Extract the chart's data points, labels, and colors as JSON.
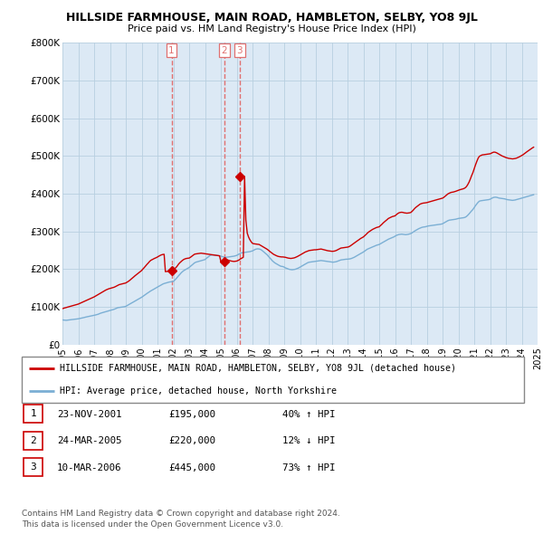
{
  "title": "HILLSIDE FARMHOUSE, MAIN ROAD, HAMBLETON, SELBY, YO8 9JL",
  "subtitle": "Price paid vs. HM Land Registry's House Price Index (HPI)",
  "legend_line1": "HILLSIDE FARMHOUSE, MAIN ROAD, HAMBLETON, SELBY, YO8 9JL (detached house)",
  "legend_line2": "HPI: Average price, detached house, North Yorkshire",
  "footer1": "Contains HM Land Registry data © Crown copyright and database right 2024.",
  "footer2": "This data is licensed under the Open Government Licence v3.0.",
  "transactions": [
    {
      "num": "1",
      "date": "23-NOV-2001",
      "price": "£195,000",
      "hpi": "40% ↑ HPI",
      "year": 2001.89
    },
    {
      "num": "2",
      "date": "24-MAR-2005",
      "price": "£220,000",
      "hpi": "12% ↓ HPI",
      "year": 2005.23
    },
    {
      "num": "3",
      "date": "10-MAR-2006",
      "price": "£445,000",
      "hpi": "73% ↑ HPI",
      "year": 2006.19
    }
  ],
  "hpi_color": "#7bafd4",
  "price_color": "#cc0000",
  "vline_color": "#e07070",
  "background_chart": "#dce9f5",
  "grid_color": "#b8cfe0",
  "ylim": [
    0,
    800000
  ],
  "yticks": [
    0,
    100000,
    200000,
    300000,
    400000,
    500000,
    600000,
    700000,
    800000
  ],
  "ytick_labels": [
    "£0",
    "£100K",
    "£200K",
    "£300K",
    "£400K",
    "£500K",
    "£600K",
    "£700K",
    "£800K"
  ],
  "sale_prices": [
    195000,
    220000,
    445000
  ],
  "sale_years": [
    2001.89,
    2005.23,
    2006.19
  ],
  "vline_years": [
    2001.89,
    2005.23,
    2006.19
  ],
  "hpi_x": [
    1995.0,
    1995.08,
    1995.17,
    1995.25,
    1995.33,
    1995.42,
    1995.5,
    1995.58,
    1995.67,
    1995.75,
    1995.83,
    1995.92,
    1996.0,
    1996.08,
    1996.17,
    1996.25,
    1996.33,
    1996.42,
    1996.5,
    1996.58,
    1996.67,
    1996.75,
    1996.83,
    1996.92,
    1997.0,
    1997.08,
    1997.17,
    1997.25,
    1997.33,
    1997.42,
    1997.5,
    1997.58,
    1997.67,
    1997.75,
    1997.83,
    1997.92,
    1998.0,
    1998.08,
    1998.17,
    1998.25,
    1998.33,
    1998.42,
    1998.5,
    1998.58,
    1998.67,
    1998.75,
    1998.83,
    1998.92,
    1999.0,
    1999.08,
    1999.17,
    1999.25,
    1999.33,
    1999.42,
    1999.5,
    1999.58,
    1999.67,
    1999.75,
    1999.83,
    1999.92,
    2000.0,
    2000.08,
    2000.17,
    2000.25,
    2000.33,
    2000.42,
    2000.5,
    2000.58,
    2000.67,
    2000.75,
    2000.83,
    2000.92,
    2001.0,
    2001.08,
    2001.17,
    2001.25,
    2001.33,
    2001.42,
    2001.5,
    2001.58,
    2001.67,
    2001.75,
    2001.83,
    2001.92,
    2002.0,
    2002.08,
    2002.17,
    2002.25,
    2002.33,
    2002.42,
    2002.5,
    2002.58,
    2002.67,
    2002.75,
    2002.83,
    2002.92,
    2003.0,
    2003.08,
    2003.17,
    2003.25,
    2003.33,
    2003.42,
    2003.5,
    2003.58,
    2003.67,
    2003.75,
    2003.83,
    2003.92,
    2004.0,
    2004.08,
    2004.17,
    2004.25,
    2004.33,
    2004.42,
    2004.5,
    2004.58,
    2004.67,
    2004.75,
    2004.83,
    2004.92,
    2005.0,
    2005.08,
    2005.17,
    2005.25,
    2005.33,
    2005.42,
    2005.5,
    2005.58,
    2005.67,
    2005.75,
    2005.83,
    2005.92,
    2006.0,
    2006.08,
    2006.17,
    2006.25,
    2006.33,
    2006.42,
    2006.5,
    2006.58,
    2006.67,
    2006.75,
    2006.83,
    2006.92,
    2007.0,
    2007.08,
    2007.17,
    2007.25,
    2007.33,
    2007.42,
    2007.5,
    2007.58,
    2007.67,
    2007.75,
    2007.83,
    2007.92,
    2008.0,
    2008.08,
    2008.17,
    2008.25,
    2008.33,
    2008.42,
    2008.5,
    2008.58,
    2008.67,
    2008.75,
    2008.83,
    2008.92,
    2009.0,
    2009.08,
    2009.17,
    2009.25,
    2009.33,
    2009.42,
    2009.5,
    2009.58,
    2009.67,
    2009.75,
    2009.83,
    2009.92,
    2010.0,
    2010.08,
    2010.17,
    2010.25,
    2010.33,
    2010.42,
    2010.5,
    2010.58,
    2010.67,
    2010.75,
    2010.83,
    2010.92,
    2011.0,
    2011.08,
    2011.17,
    2011.25,
    2011.33,
    2011.42,
    2011.5,
    2011.58,
    2011.67,
    2011.75,
    2011.83,
    2011.92,
    2012.0,
    2012.08,
    2012.17,
    2012.25,
    2012.33,
    2012.42,
    2012.5,
    2012.58,
    2012.67,
    2012.75,
    2012.83,
    2012.92,
    2013.0,
    2013.08,
    2013.17,
    2013.25,
    2013.33,
    2013.42,
    2013.5,
    2013.58,
    2013.67,
    2013.75,
    2013.83,
    2013.92,
    2014.0,
    2014.08,
    2014.17,
    2014.25,
    2014.33,
    2014.42,
    2014.5,
    2014.58,
    2014.67,
    2014.75,
    2014.83,
    2014.92,
    2015.0,
    2015.08,
    2015.17,
    2015.25,
    2015.33,
    2015.42,
    2015.5,
    2015.58,
    2015.67,
    2015.75,
    2015.83,
    2015.92,
    2016.0,
    2016.08,
    2016.17,
    2016.25,
    2016.33,
    2016.42,
    2016.5,
    2016.58,
    2016.67,
    2016.75,
    2016.83,
    2016.92,
    2017.0,
    2017.08,
    2017.17,
    2017.25,
    2017.33,
    2017.42,
    2017.5,
    2017.58,
    2017.67,
    2017.75,
    2017.83,
    2017.92,
    2018.0,
    2018.08,
    2018.17,
    2018.25,
    2018.33,
    2018.42,
    2018.5,
    2018.58,
    2018.67,
    2018.75,
    2018.83,
    2018.92,
    2019.0,
    2019.08,
    2019.17,
    2019.25,
    2019.33,
    2019.42,
    2019.5,
    2019.58,
    2019.67,
    2019.75,
    2019.83,
    2019.92,
    2020.0,
    2020.08,
    2020.17,
    2020.25,
    2020.33,
    2020.42,
    2020.5,
    2020.58,
    2020.67,
    2020.75,
    2020.83,
    2020.92,
    2021.0,
    2021.08,
    2021.17,
    2021.25,
    2021.33,
    2021.42,
    2021.5,
    2021.58,
    2021.67,
    2021.75,
    2021.83,
    2021.92,
    2022.0,
    2022.08,
    2022.17,
    2022.25,
    2022.33,
    2022.42,
    2022.5,
    2022.58,
    2022.67,
    2022.75,
    2022.83,
    2022.92,
    2023.0,
    2023.08,
    2023.17,
    2023.25,
    2023.33,
    2023.42,
    2023.5,
    2023.58,
    2023.67,
    2023.75,
    2023.83,
    2023.92,
    2024.0,
    2024.08,
    2024.17,
    2024.25,
    2024.33,
    2024.42,
    2024.5,
    2024.58,
    2024.67,
    2024.75
  ],
  "hpi_y": [
    65000,
    64500,
    64200,
    64000,
    64500,
    65000,
    65500,
    65800,
    66200,
    66500,
    67000,
    67500,
    68000,
    68800,
    69500,
    70200,
    71000,
    72000,
    72800,
    73500,
    74200,
    75000,
    75800,
    76500,
    77000,
    78000,
    79000,
    80000,
    81500,
    83000,
    84000,
    85000,
    86000,
    87000,
    88000,
    89000,
    90000,
    91000,
    92000,
    93000,
    94500,
    96000,
    97500,
    98000,
    98500,
    99000,
    99500,
    100000,
    101000,
    103000,
    105000,
    107000,
    109000,
    111000,
    113000,
    115000,
    117000,
    119000,
    121000,
    123000,
    125000,
    127500,
    130000,
    132500,
    135000,
    137500,
    140000,
    142000,
    144000,
    146000,
    148000,
    150000,
    152000,
    154000,
    156000,
    158000,
    160000,
    161500,
    162500,
    163500,
    164500,
    165500,
    166000,
    166500,
    167000,
    170000,
    174000,
    178000,
    182000,
    186000,
    190000,
    193000,
    196000,
    198000,
    200000,
    202000,
    204000,
    207000,
    210000,
    213000,
    216000,
    218000,
    219000,
    220000,
    221000,
    222000,
    223000,
    224000,
    225000,
    228000,
    231000,
    234000,
    236000,
    237000,
    237500,
    237000,
    236500,
    236000,
    235500,
    235000,
    234000,
    233000,
    232000,
    231500,
    231000,
    231500,
    232000,
    232500,
    233000,
    233500,
    234000,
    235000,
    236000,
    238000,
    240000,
    242000,
    243000,
    243500,
    244000,
    244500,
    245000,
    245500,
    246000,
    247000,
    248000,
    250000,
    252000,
    253000,
    253500,
    253000,
    252000,
    250000,
    247000,
    244000,
    241000,
    238000,
    234000,
    230000,
    226000,
    222000,
    219000,
    216000,
    214000,
    212000,
    210000,
    208000,
    207000,
    206500,
    205000,
    203000,
    201500,
    200000,
    199000,
    198500,
    198000,
    198500,
    199000,
    200000,
    201500,
    203000,
    205000,
    207000,
    209000,
    211000,
    213000,
    215000,
    217000,
    218000,
    218500,
    219000,
    219500,
    220000,
    220500,
    221000,
    221500,
    222000,
    222500,
    222000,
    221500,
    221000,
    220500,
    220000,
    219500,
    219000,
    218500,
    218000,
    218500,
    219000,
    220000,
    221500,
    223000,
    224000,
    224500,
    225000,
    225500,
    226000,
    226000,
    226500,
    227000,
    228000,
    229500,
    231000,
    233000,
    235000,
    237000,
    239000,
    241000,
    243000,
    245000,
    247500,
    250000,
    252500,
    254000,
    255500,
    257000,
    258500,
    260000,
    261500,
    263000,
    264000,
    265000,
    267000,
    269000,
    271000,
    273000,
    275000,
    277000,
    279000,
    280500,
    282000,
    283500,
    285000,
    287000,
    289000,
    290500,
    291500,
    292000,
    292500,
    292000,
    291500,
    291000,
    291500,
    292000,
    293000,
    294000,
    296000,
    298500,
    301000,
    303000,
    305000,
    307000,
    308500,
    310000,
    311000,
    311500,
    312000,
    313000,
    314000,
    314500,
    315000,
    315500,
    316000,
    316500,
    317000,
    317500,
    318000,
    318500,
    319000,
    320000,
    322000,
    324000,
    326000,
    328000,
    329500,
    330000,
    330500,
    331000,
    331500,
    332000,
    333000,
    334000,
    334500,
    335000,
    335500,
    336000,
    337000,
    339000,
    342000,
    346000,
    350000,
    354000,
    358000,
    363000,
    368000,
    373000,
    377000,
    380000,
    381000,
    381500,
    382000,
    382500,
    383000,
    383500,
    384000,
    385000,
    387000,
    389000,
    390000,
    390500,
    390000,
    389000,
    388000,
    387500,
    387000,
    386500,
    386000,
    385000,
    384000,
    383500,
    383000,
    382500,
    382000,
    382500,
    383000,
    384000,
    385000,
    386000,
    387000,
    388000,
    389000,
    390000,
    391000,
    392000,
    393000,
    394000,
    395000,
    396000,
    397000
  ],
  "red_x": [
    1995.0,
    1995.08,
    1995.17,
    1995.25,
    1995.33,
    1995.42,
    1995.5,
    1995.58,
    1995.67,
    1995.75,
    1995.83,
    1995.92,
    1996.0,
    1996.08,
    1996.17,
    1996.25,
    1996.33,
    1996.42,
    1996.5,
    1996.58,
    1996.67,
    1996.75,
    1996.83,
    1996.92,
    1997.0,
    1997.08,
    1997.17,
    1997.25,
    1997.33,
    1997.42,
    1997.5,
    1997.58,
    1997.67,
    1997.75,
    1997.83,
    1997.92,
    1998.0,
    1998.08,
    1998.17,
    1998.25,
    1998.33,
    1998.42,
    1998.5,
    1998.58,
    1998.67,
    1998.75,
    1998.83,
    1998.92,
    1999.0,
    1999.08,
    1999.17,
    1999.25,
    1999.33,
    1999.42,
    1999.5,
    1999.58,
    1999.67,
    1999.75,
    1999.83,
    1999.92,
    2000.0,
    2000.08,
    2000.17,
    2000.25,
    2000.33,
    2000.42,
    2000.5,
    2000.58,
    2000.67,
    2000.75,
    2000.83,
    2000.92,
    2001.0,
    2001.08,
    2001.17,
    2001.25,
    2001.33,
    2001.42,
    2001.5,
    2001.58,
    2001.67,
    2001.75,
    2001.83,
    2001.92,
    2002.0,
    2002.08,
    2002.17,
    2002.25,
    2002.33,
    2002.42,
    2002.5,
    2002.58,
    2002.67,
    2002.75,
    2002.83,
    2002.92,
    2003.0,
    2003.08,
    2003.17,
    2003.25,
    2003.33,
    2003.42,
    2003.5,
    2003.58,
    2003.67,
    2003.75,
    2003.83,
    2003.92,
    2004.0,
    2004.08,
    2004.17,
    2004.25,
    2004.33,
    2004.42,
    2004.5,
    2004.58,
    2004.67,
    2004.75,
    2004.83,
    2004.92,
    2005.0,
    2005.08,
    2005.17,
    2005.25,
    2005.33,
    2005.42,
    2005.5,
    2005.58,
    2005.67,
    2005.75,
    2005.83,
    2005.92,
    2006.0,
    2006.08,
    2006.17,
    2006.25,
    2006.33,
    2006.42,
    2006.5,
    2006.58,
    2006.67,
    2006.75,
    2006.83,
    2006.92,
    2007.0,
    2007.08,
    2007.17,
    2007.25,
    2007.33,
    2007.42,
    2007.5,
    2007.58,
    2007.67,
    2007.75,
    2007.83,
    2007.92,
    2008.0,
    2008.08,
    2008.17,
    2008.25,
    2008.33,
    2008.42,
    2008.5,
    2008.58,
    2008.67,
    2008.75,
    2008.83,
    2008.92,
    2009.0,
    2009.08,
    2009.17,
    2009.25,
    2009.33,
    2009.42,
    2009.5,
    2009.58,
    2009.67,
    2009.75,
    2009.83,
    2009.92,
    2010.0,
    2010.08,
    2010.17,
    2010.25,
    2010.33,
    2010.42,
    2010.5,
    2010.58,
    2010.67,
    2010.75,
    2010.83,
    2010.92,
    2011.0,
    2011.08,
    2011.17,
    2011.25,
    2011.33,
    2011.42,
    2011.5,
    2011.58,
    2011.67,
    2011.75,
    2011.83,
    2011.92,
    2012.0,
    2012.08,
    2012.17,
    2012.25,
    2012.33,
    2012.42,
    2012.5,
    2012.58,
    2012.67,
    2012.75,
    2012.83,
    2012.92,
    2013.0,
    2013.08,
    2013.17,
    2013.25,
    2013.33,
    2013.42,
    2013.5,
    2013.58,
    2013.67,
    2013.75,
    2013.83,
    2013.92,
    2014.0,
    2014.08,
    2014.17,
    2014.25,
    2014.33,
    2014.42,
    2014.5,
    2014.58,
    2014.67,
    2014.75,
    2014.83,
    2014.92,
    2015.0,
    2015.08,
    2015.17,
    2015.25,
    2015.33,
    2015.42,
    2015.5,
    2015.58,
    2015.67,
    2015.75,
    2015.83,
    2015.92,
    2016.0,
    2016.08,
    2016.17,
    2016.25,
    2016.33,
    2016.42,
    2016.5,
    2016.58,
    2016.67,
    2016.75,
    2016.83,
    2016.92,
    2017.0,
    2017.08,
    2017.17,
    2017.25,
    2017.33,
    2017.42,
    2017.5,
    2017.58,
    2017.67,
    2017.75,
    2017.83,
    2017.92,
    2018.0,
    2018.08,
    2018.17,
    2018.25,
    2018.33,
    2018.42,
    2018.5,
    2018.58,
    2018.67,
    2018.75,
    2018.83,
    2018.92,
    2019.0,
    2019.08,
    2019.17,
    2019.25,
    2019.33,
    2019.42,
    2019.5,
    2019.58,
    2019.67,
    2019.75,
    2019.83,
    2019.92,
    2020.0,
    2020.08,
    2020.17,
    2020.25,
    2020.33,
    2020.42,
    2020.5,
    2020.58,
    2020.67,
    2020.75,
    2020.83,
    2020.92,
    2021.0,
    2021.08,
    2021.17,
    2021.25,
    2021.33,
    2021.42,
    2021.5,
    2021.58,
    2021.67,
    2021.75,
    2021.83,
    2021.92,
    2022.0,
    2022.08,
    2022.17,
    2022.25,
    2022.33,
    2022.42,
    2022.5,
    2022.58,
    2022.67,
    2022.75,
    2022.83,
    2022.92,
    2023.0,
    2023.08,
    2023.17,
    2023.25,
    2023.33,
    2023.42,
    2023.5,
    2023.58,
    2023.67,
    2023.75,
    2023.83,
    2023.92,
    2024.0,
    2024.08,
    2024.17,
    2024.25,
    2024.33,
    2024.42,
    2024.5,
    2024.58,
    2024.67,
    2024.75
  ],
  "red_y": [
    95000,
    96000,
    97000,
    98000,
    99000,
    100000,
    101000,
    102000,
    103000,
    104000,
    105000,
    106000,
    107000,
    108500,
    110000,
    111500,
    113000,
    115000,
    116500,
    118000,
    119500,
    121000,
    122500,
    124000,
    126000,
    128000,
    130000,
    132000,
    134000,
    136500,
    138500,
    140500,
    142500,
    144500,
    146000,
    147500,
    148500,
    149500,
    150500,
    151500,
    153000,
    155000,
    157000,
    158500,
    159500,
    160500,
    161500,
    162500,
    163000,
    165000,
    167500,
    170000,
    173000,
    176000,
    179000,
    182000,
    185000,
    188000,
    190500,
    193000,
    196000,
    200000,
    204000,
    208000,
    212000,
    216000,
    220000,
    223000,
    225000,
    227000,
    228500,
    230000,
    232000,
    234000,
    236000,
    237500,
    238500,
    239000,
    193000,
    193500,
    194000,
    194500,
    195000,
    196500,
    198000,
    200500,
    204000,
    208000,
    213000,
    217000,
    220000,
    223000,
    225500,
    227000,
    228000,
    228500,
    229000,
    231000,
    234000,
    237000,
    239000,
    240000,
    240500,
    241000,
    241500,
    242000,
    241500,
    241000,
    240500,
    240000,
    239500,
    239000,
    238500,
    238000,
    237500,
    237000,
    236500,
    236000,
    235500,
    235000,
    220000,
    221500,
    223000,
    224000,
    224500,
    224000,
    223000,
    222000,
    221000,
    220500,
    220000,
    220500,
    221000,
    222500,
    224500,
    227000,
    229000,
    231000,
    445000,
    330000,
    295000,
    285000,
    278000,
    272000,
    268000,
    267000,
    266500,
    266000,
    265500,
    265000,
    263000,
    261000,
    259000,
    257000,
    255000,
    252500,
    250000,
    247000,
    244000,
    241000,
    239000,
    237000,
    235500,
    234000,
    233000,
    232500,
    232000,
    232000,
    231500,
    231000,
    230000,
    229000,
    228500,
    228000,
    228500,
    229000,
    230000,
    231500,
    233000,
    235000,
    237000,
    239000,
    241000,
    243000,
    245000,
    246500,
    248000,
    249000,
    249500,
    250000,
    250500,
    251000,
    251000,
    251500,
    252000,
    252500,
    253000,
    252000,
    251000,
    250000,
    249000,
    248500,
    248000,
    247500,
    247000,
    247000,
    247500,
    248500,
    250000,
    252000,
    254000,
    255500,
    256000,
    256500,
    257000,
    257500,
    258000,
    259000,
    261000,
    263500,
    266000,
    268500,
    271000,
    273500,
    276000,
    278500,
    281000,
    283000,
    285000,
    288000,
    291500,
    295000,
    298000,
    300500,
    303000,
    305000,
    307000,
    308500,
    310000,
    311000,
    312000,
    315000,
    318500,
    322000,
    325000,
    328000,
    331000,
    334000,
    336000,
    337500,
    339000,
    340000,
    341000,
    344000,
    347000,
    349000,
    350000,
    350500,
    350000,
    349000,
    348500,
    348000,
    348500,
    349000,
    350000,
    353000,
    357000,
    361000,
    364000,
    367000,
    370000,
    372000,
    373500,
    374500,
    375000,
    375500,
    376000,
    377000,
    378000,
    379000,
    380000,
    381000,
    382000,
    383000,
    384000,
    385000,
    386000,
    387000,
    388000,
    390000,
    393000,
    396000,
    399000,
    401000,
    402500,
    403500,
    404000,
    405000,
    406000,
    407500,
    409000,
    410000,
    411000,
    412000,
    413000,
    415000,
    418000,
    423000,
    430000,
    438000,
    447000,
    456000,
    466000,
    476000,
    486000,
    494000,
    499000,
    501000,
    502500,
    503000,
    503500,
    504000,
    504500,
    505000,
    505500,
    507000,
    509000,
    510000,
    509500,
    508000,
    506000,
    504000,
    502000,
    500000,
    498500,
    497000,
    495500,
    494500,
    493500,
    493000,
    492500,
    492000,
    492500,
    493000,
    494000,
    495500,
    497000,
    499000,
    501000,
    503000,
    506000,
    508500,
    511000,
    513500,
    516000,
    518500,
    521000,
    523000
  ]
}
